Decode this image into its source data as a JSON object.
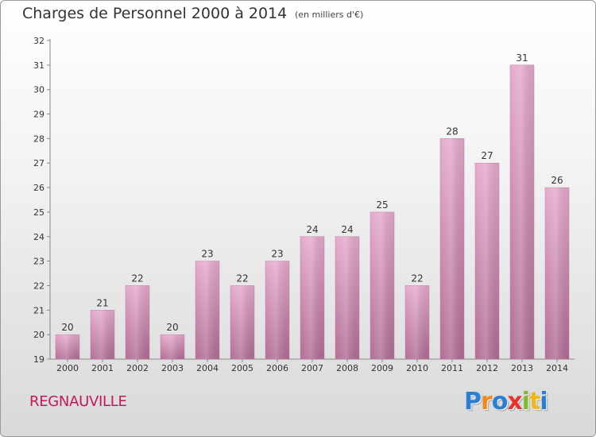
{
  "header": {
    "title": "Charges de Personnel 2000 à 2014",
    "subtitle": "(en milliers d'€)"
  },
  "footer": {
    "commune": "REGNAUVILLE",
    "logo_text": "Proxiti",
    "logo_letters": [
      {
        "ch": "P",
        "color": "#2a7fd4"
      },
      {
        "ch": "r",
        "color": "#f08a1c"
      },
      {
        "ch": "o",
        "color": "#2a7fd4"
      },
      {
        "ch": "x",
        "color": "#e8322b"
      },
      {
        "ch": "i",
        "color": "#7dbb2a"
      },
      {
        "ch": "t",
        "color": "#f0b71c"
      },
      {
        "ch": "i",
        "color": "#2a7fd4"
      }
    ]
  },
  "chart_data": {
    "type": "bar",
    "categories": [
      "2000",
      "2001",
      "2002",
      "2003",
      "2004",
      "2005",
      "2006",
      "2007",
      "2008",
      "2009",
      "2010",
      "2011",
      "2012",
      "2013",
      "2014"
    ],
    "values": [
      20,
      21,
      22,
      20,
      23,
      22,
      23,
      24,
      24,
      25,
      22,
      28,
      27,
      31,
      26
    ],
    "ylim": [
      19,
      32
    ],
    "yticks": [
      19,
      20,
      21,
      22,
      23,
      24,
      25,
      26,
      27,
      28,
      29,
      30,
      31,
      32
    ],
    "grid": false,
    "bar_color_top": "#e6aacd",
    "bar_color_bottom": "#b06d95"
  }
}
